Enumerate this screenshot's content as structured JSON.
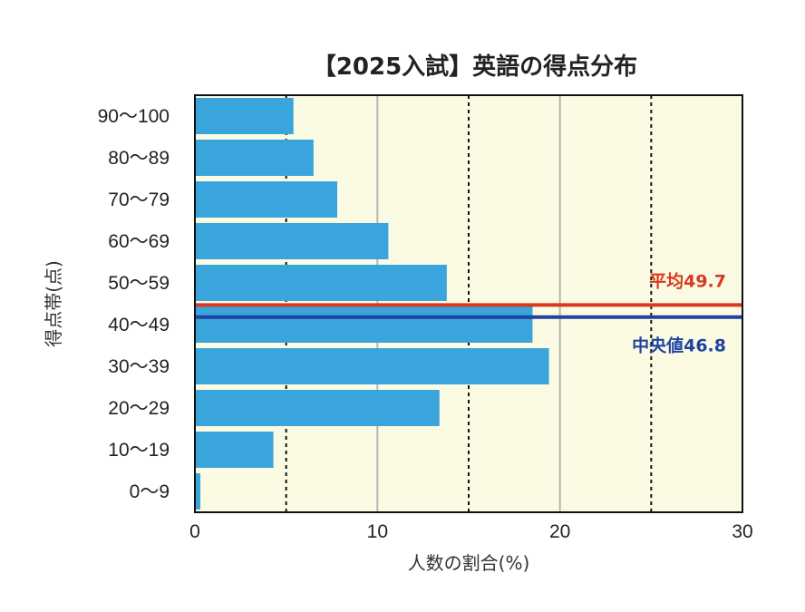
{
  "chart_data": {
    "type": "bar",
    "orientation": "horizontal",
    "title": "【2025入試】英語の得点分布",
    "xlabel": "人数の割合(%)",
    "ylabel": "得点帯(点)",
    "xlim": [
      0,
      30
    ],
    "xticks": [
      "0",
      "10",
      "20",
      "30"
    ],
    "categories": [
      "90〜100",
      "80〜89",
      "70〜79",
      "60〜69",
      "50〜59",
      "40〜49",
      "30〜39",
      "20〜29",
      "10〜19",
      "0〜9"
    ],
    "values": [
      5.4,
      6.5,
      7.8,
      10.6,
      13.8,
      18.5,
      19.4,
      13.4,
      4.3,
      0.3
    ],
    "bar_color": "#3aa5dc",
    "plot_background": "#fbfbe4",
    "minor_gridlines": [
      5,
      15,
      25
    ],
    "major_gridlines": [
      10,
      20
    ],
    "reference_lines": [
      {
        "label": "平均49.7",
        "value": 49.7,
        "color": "#d9391e"
      },
      {
        "label": "中央値46.8",
        "value": 46.8,
        "color": "#1f44a0"
      }
    ]
  }
}
